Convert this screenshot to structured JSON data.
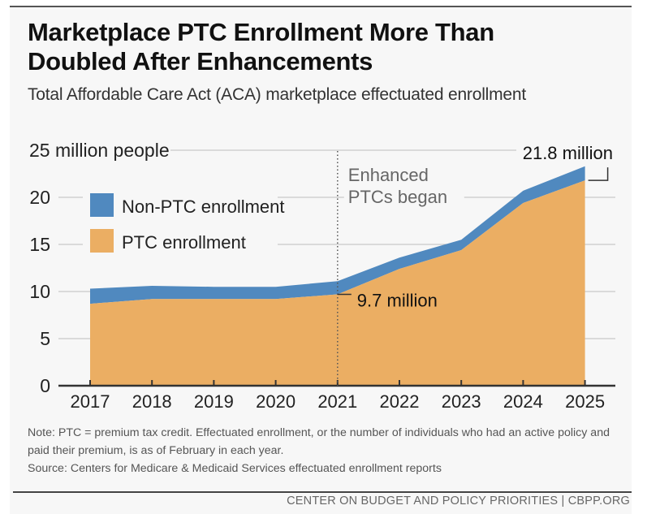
{
  "header": {
    "title_line1": "Marketplace PTC Enrollment More Than",
    "title_line2": "Doubled After Enhancements",
    "subtitle": "Total Affordable Care Act (ACA) marketplace effectuated enrollment"
  },
  "footer": {
    "note": "Note: PTC = premium tax credit. Effectuated enrollment, or the number of individuals who had an active policy and paid their premium, is as of February in each year.",
    "source": "Source: Centers for Medicare & Medicaid Services effectuated enrollment reports",
    "credit": "CENTER ON BUDGET AND POLICY PRIORITIES | CBPP.ORG"
  },
  "colors": {
    "ptc": "#ebae63",
    "non_ptc": "#5089bf",
    "grid": "#c8c8c8",
    "axis": "#333333"
  },
  "chart_data": {
    "type": "area",
    "stacked": true,
    "title": "Marketplace PTC Enrollment More Than Doubled After Enhancements",
    "subtitle": "Total Affordable Care Act (ACA) marketplace effectuated enrollment",
    "xlabel": "",
    "ylabel": "million people",
    "ylim": [
      0,
      25
    ],
    "yticks": [
      0,
      5,
      10,
      15,
      20,
      25
    ],
    "ytick_labels": [
      "0",
      "5",
      "10",
      "15",
      "20",
      "25 million people"
    ],
    "grid": true,
    "legend_position": "top-left",
    "categories": [
      "2017",
      "2018",
      "2019",
      "2020",
      "2021",
      "2022",
      "2023",
      "2024",
      "2025"
    ],
    "series": [
      {
        "name": "PTC enrollment",
        "values": [
          8.7,
          9.2,
          9.2,
          9.2,
          9.7,
          12.4,
          14.4,
          19.4,
          21.8
        ]
      },
      {
        "name": "Non-PTC enrollment",
        "values": [
          1.6,
          1.4,
          1.3,
          1.3,
          1.4,
          1.2,
          1.1,
          1.3,
          1.5
        ]
      }
    ],
    "legend": [
      "Non-PTC enrollment",
      "PTC enrollment"
    ],
    "annotations": [
      {
        "text_line1": "Enhanced",
        "text_line2": "PTCs began",
        "x": "2021",
        "type": "vertical-dotted-line"
      },
      {
        "text": "9.7 million",
        "x": "2021",
        "y": 9.7
      },
      {
        "text": "21.8 million",
        "x": "2025",
        "y": 21.8
      }
    ]
  }
}
